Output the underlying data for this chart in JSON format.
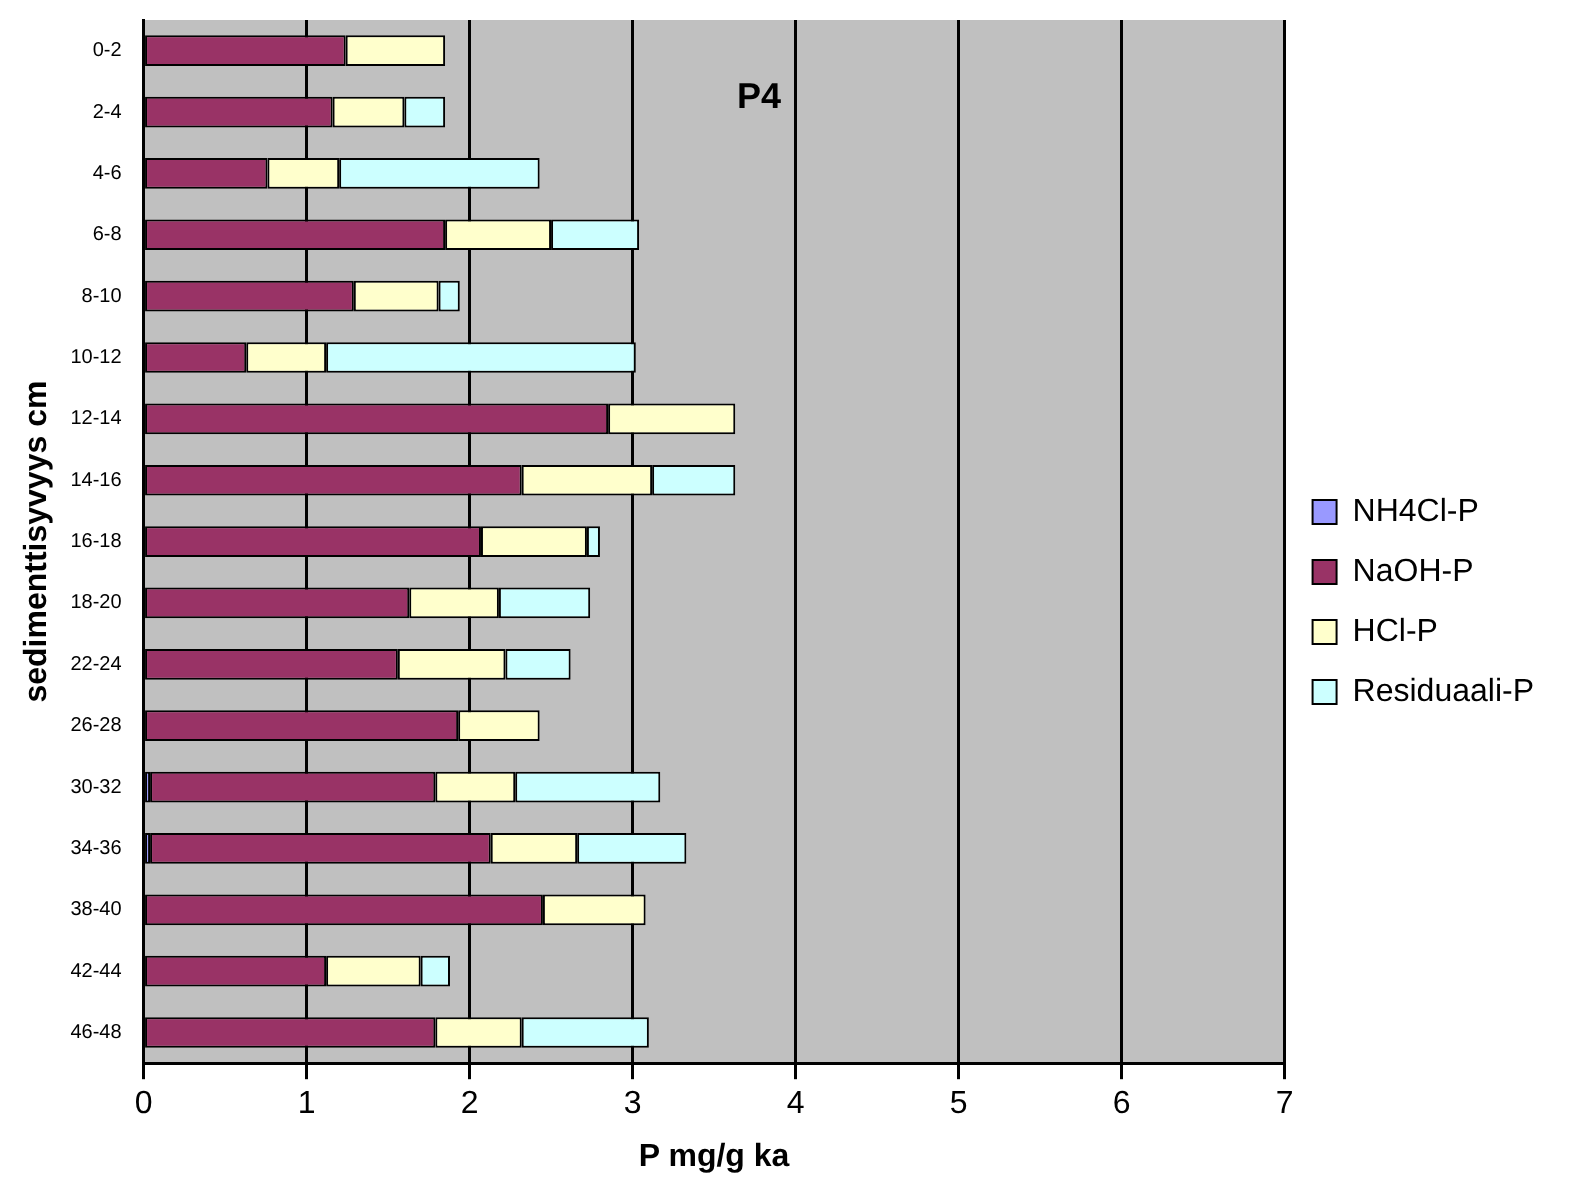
{
  "chart_data": {
    "type": "bar",
    "orientation": "horizontal",
    "stacked": true,
    "xlabel": "P mg/g ka",
    "ylabel": "sedimenttisyvyys cm",
    "annotations": [
      "P4"
    ],
    "categories": [
      "0-2",
      "2-4",
      "4-6",
      "6-8",
      "8-10",
      "10-12",
      "12-14",
      "14-16",
      "16-18",
      "18-20",
      "22-24",
      "26-28",
      "30-32",
      "34-36",
      "38-40",
      "42-44",
      "46-48"
    ],
    "series": [
      {
        "name": "NH4Cl-P",
        "color": "#9999ff",
        "values": [
          0,
          0,
          0,
          0,
          0,
          0,
          0,
          0,
          0,
          0,
          0,
          0,
          0.04,
          0.04,
          0,
          0,
          0
        ]
      },
      {
        "name": "NaOH-P",
        "color": "#993366",
        "values": [
          1.24,
          1.16,
          0.76,
          1.85,
          1.29,
          0.63,
          2.85,
          2.32,
          2.07,
          1.63,
          1.56,
          1.93,
          1.75,
          2.09,
          2.45,
          1.12,
          1.79
        ]
      },
      {
        "name": "HCl-P",
        "color": "#ffffcc",
        "values": [
          0.61,
          0.44,
          0.44,
          0.65,
          0.52,
          0.49,
          0.78,
          0.8,
          0.65,
          0.55,
          0.66,
          0.5,
          0.49,
          0.53,
          0.63,
          0.58,
          0.53
        ]
      },
      {
        "name": "Residuaali-P",
        "color": "#ccffff",
        "values": [
          0,
          0.25,
          1.23,
          0.54,
          0.13,
          1.9,
          0,
          0.51,
          0.08,
          0.56,
          0.4,
          0,
          0.89,
          0.67,
          0,
          0.18,
          0.78
        ]
      }
    ],
    "xlim": [
      0,
      7
    ],
    "xticks": [
      0,
      1,
      2,
      3,
      4,
      5,
      6,
      7
    ],
    "grid": "x",
    "legend": "right"
  }
}
